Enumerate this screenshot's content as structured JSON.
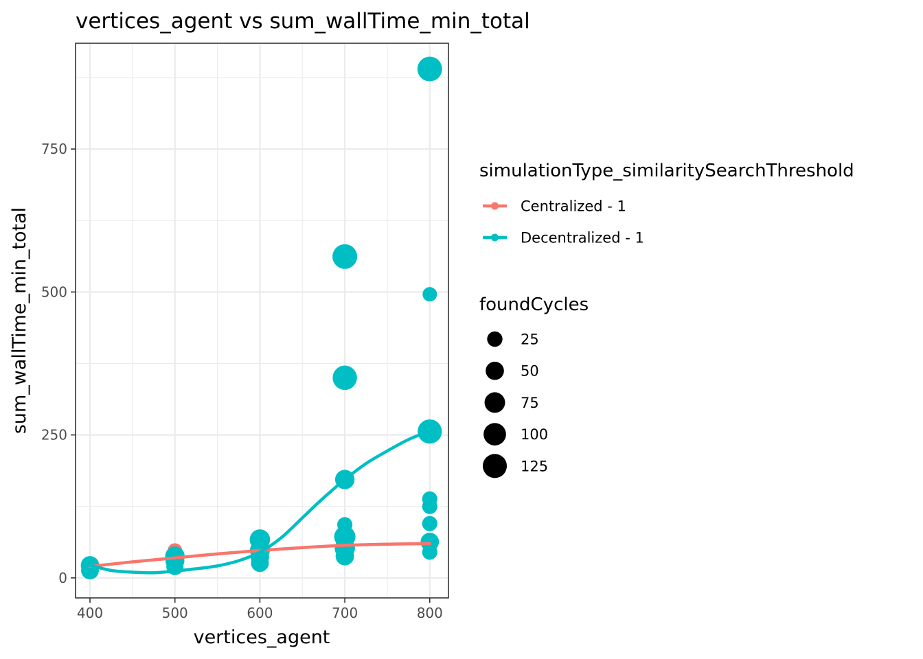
{
  "chart_data": {
    "type": "scatter",
    "title": "vertices_agent  vs  sum_wallTime_min_total",
    "xlabel": "vertices_agent",
    "ylabel": "sum_wallTime_min_total",
    "xlim": [
      383,
      822
    ],
    "ylim": [
      -35,
      935
    ],
    "x_ticks": [
      400,
      500,
      600,
      700,
      800
    ],
    "y_ticks": [
      0,
      250,
      500,
      750
    ],
    "grid": true,
    "color_legend": {
      "title": "simulationType_similaritySearchThreshold",
      "placement": "right",
      "entries": [
        {
          "label": "Centralized - 1",
          "color": "#F8766D"
        },
        {
          "label": "Decentralized - 1",
          "color": "#00BFC4"
        }
      ]
    },
    "size_legend": {
      "title": "foundCycles",
      "placement": "right",
      "entries": [
        {
          "label": "25",
          "value": 25
        },
        {
          "label": "50",
          "value": 50
        },
        {
          "label": "75",
          "value": 75
        },
        {
          "label": "100",
          "value": 100
        },
        {
          "label": "125",
          "value": 125
        }
      ]
    },
    "series": [
      {
        "name": "Centralized - 1",
        "color": "#F8766D",
        "points": [
          {
            "x": 400,
            "y": 18,
            "size": 20
          },
          {
            "x": 400,
            "y": 22,
            "size": 20
          },
          {
            "x": 500,
            "y": 48,
            "size": 20
          },
          {
            "x": 500,
            "y": 40,
            "size": 20
          },
          {
            "x": 500,
            "y": 32,
            "size": 20
          },
          {
            "x": 600,
            "y": 58,
            "size": 20
          },
          {
            "x": 600,
            "y": 50,
            "size": 20
          },
          {
            "x": 600,
            "y": 44,
            "size": 20
          },
          {
            "x": 700,
            "y": 60,
            "size": 20
          },
          {
            "x": 700,
            "y": 55,
            "size": 20
          },
          {
            "x": 700,
            "y": 52,
            "size": 20
          },
          {
            "x": 800,
            "y": 66,
            "size": 20
          },
          {
            "x": 800,
            "y": 62,
            "size": 20
          },
          {
            "x": 800,
            "y": 58,
            "size": 20
          }
        ],
        "smooth": [
          {
            "x": 400,
            "y": 20
          },
          {
            "x": 450,
            "y": 28
          },
          {
            "x": 500,
            "y": 35
          },
          {
            "x": 550,
            "y": 42
          },
          {
            "x": 600,
            "y": 48
          },
          {
            "x": 650,
            "y": 53
          },
          {
            "x": 700,
            "y": 57
          },
          {
            "x": 750,
            "y": 59
          },
          {
            "x": 800,
            "y": 60
          }
        ]
      },
      {
        "name": "Decentralized - 1",
        "color": "#00BFC4",
        "points": [
          {
            "x": 400,
            "y": 22,
            "size": 50
          },
          {
            "x": 400,
            "y": 13,
            "size": 45
          },
          {
            "x": 500,
            "y": 38,
            "size": 60
          },
          {
            "x": 500,
            "y": 30,
            "size": 55
          },
          {
            "x": 500,
            "y": 20,
            "size": 40
          },
          {
            "x": 600,
            "y": 67,
            "size": 70
          },
          {
            "x": 600,
            "y": 48,
            "size": 65
          },
          {
            "x": 600,
            "y": 36,
            "size": 50
          },
          {
            "x": 600,
            "y": 26,
            "size": 45
          },
          {
            "x": 700,
            "y": 562,
            "size": 125
          },
          {
            "x": 700,
            "y": 350,
            "size": 120
          },
          {
            "x": 700,
            "y": 172,
            "size": 60
          },
          {
            "x": 700,
            "y": 93,
            "size": 25
          },
          {
            "x": 700,
            "y": 72,
            "size": 80
          },
          {
            "x": 700,
            "y": 52,
            "size": 70
          },
          {
            "x": 700,
            "y": 38,
            "size": 50
          },
          {
            "x": 800,
            "y": 890,
            "size": 125
          },
          {
            "x": 800,
            "y": 496,
            "size": 20
          },
          {
            "x": 800,
            "y": 256,
            "size": 118
          },
          {
            "x": 800,
            "y": 138,
            "size": 25
          },
          {
            "x": 800,
            "y": 125,
            "size": 25
          },
          {
            "x": 800,
            "y": 95,
            "size": 25
          },
          {
            "x": 800,
            "y": 63,
            "size": 50
          },
          {
            "x": 800,
            "y": 45,
            "size": 25
          }
        ],
        "smooth": [
          {
            "x": 400,
            "y": 22
          },
          {
            "x": 425,
            "y": 13
          },
          {
            "x": 450,
            "y": 10
          },
          {
            "x": 475,
            "y": 9
          },
          {
            "x": 500,
            "y": 12
          },
          {
            "x": 525,
            "y": 16
          },
          {
            "x": 550,
            "y": 21
          },
          {
            "x": 575,
            "y": 30
          },
          {
            "x": 600,
            "y": 45
          },
          {
            "x": 625,
            "y": 70
          },
          {
            "x": 650,
            "y": 105
          },
          {
            "x": 675,
            "y": 140
          },
          {
            "x": 700,
            "y": 172
          },
          {
            "x": 725,
            "y": 200
          },
          {
            "x": 750,
            "y": 222
          },
          {
            "x": 775,
            "y": 242
          },
          {
            "x": 800,
            "y": 257
          }
        ]
      }
    ]
  }
}
